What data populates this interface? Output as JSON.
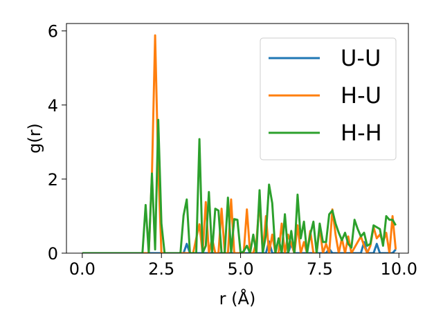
{
  "chart_data": {
    "type": "line",
    "title": "",
    "xlabel": "r (Å)",
    "ylabel": "g(r)",
    "xlim": [
      -0.5,
      10.3
    ],
    "ylim": [
      0,
      6.2
    ],
    "xticks": [
      0.0,
      2.5,
      5.0,
      7.5,
      10.0
    ],
    "xtick_labels": [
      "0.0",
      "2.5",
      "5.0",
      "7.5",
      "10.0"
    ],
    "yticks": [
      0,
      2,
      4,
      6
    ],
    "ytick_labels": [
      "0",
      "2",
      "4",
      "6"
    ],
    "grid": false,
    "legend_position": "top-right",
    "series": [
      {
        "name": "U-U",
        "color": "#1f77b4",
        "x": [
          0,
          3.2,
          3.3,
          3.4,
          5.8,
          5.9,
          6.0,
          6.5,
          6.6,
          6.7,
          7.7,
          7.8,
          7.9,
          8.8,
          8.9,
          9.0,
          9.2,
          9.3,
          9.4,
          9.8,
          9.9
        ],
        "y": [
          0,
          0,
          0.25,
          0,
          0,
          0.32,
          0,
          0,
          0.25,
          0,
          0,
          0.12,
          0,
          0,
          0.3,
          0,
          0,
          0.25,
          0,
          0,
          0.1
        ]
      },
      {
        "name": "H-U",
        "color": "#ff7f0e",
        "x": [
          0,
          2.1,
          2.2,
          2.3,
          2.4,
          2.5,
          3.5,
          3.6,
          3.7,
          3.8,
          3.9,
          4.0,
          4.1,
          4.2,
          4.3,
          4.4,
          4.5,
          4.6,
          4.7,
          4.8,
          4.9,
          5.0,
          5.1,
          5.2,
          5.3,
          5.4,
          5.5,
          5.6,
          5.7,
          5.8,
          5.9,
          6.0,
          6.1,
          6.2,
          6.3,
          6.4,
          6.5,
          6.6,
          6.7,
          6.8,
          6.9,
          7.0,
          7.1,
          7.2,
          7.3,
          7.4,
          7.5,
          7.6,
          7.7,
          7.8,
          7.9,
          8.0,
          8.1,
          8.2,
          8.3,
          8.4,
          8.5,
          8.6,
          8.7,
          8.8,
          8.9,
          9.0,
          9.1,
          9.2,
          9.3,
          9.4,
          9.5,
          9.6,
          9.7,
          9.8,
          9.9
        ],
        "y": [
          0,
          0,
          2.1,
          5.88,
          2.3,
          0,
          0,
          0.4,
          0.78,
          0,
          1.38,
          0,
          0.4,
          0,
          0,
          1.2,
          0,
          0,
          1.45,
          0,
          0,
          0,
          0,
          1.18,
          0,
          0,
          0.3,
          1.42,
          0,
          1.0,
          0,
          0.5,
          0,
          0,
          0.8,
          0,
          0.5,
          0.25,
          0,
          0.75,
          0,
          0.3,
          0,
          0.6,
          0,
          0,
          0.7,
          0,
          0.25,
          0,
          1.18,
          0.5,
          0,
          0.4,
          0,
          0.45,
          0,
          0.15,
          0.3,
          0.45,
          0.2,
          0,
          0.2,
          0.7,
          0.4,
          0.5,
          0.3,
          0.55,
          0,
          1.0,
          0.1
        ]
      },
      {
        "name": "H-H",
        "color": "#2ca02c",
        "x": [
          0,
          1.9,
          2.0,
          2.1,
          2.2,
          2.3,
          2.4,
          2.5,
          2.6,
          3.1,
          3.2,
          3.3,
          3.4,
          3.5,
          3.6,
          3.7,
          3.8,
          3.9,
          4.0,
          4.1,
          4.2,
          4.3,
          4.4,
          4.5,
          4.6,
          4.7,
          4.8,
          4.9,
          5.0,
          5.1,
          5.2,
          5.3,
          5.4,
          5.5,
          5.6,
          5.7,
          5.8,
          5.9,
          6.0,
          6.1,
          6.2,
          6.3,
          6.4,
          6.5,
          6.6,
          6.7,
          6.8,
          6.9,
          7.0,
          7.1,
          7.2,
          7.3,
          7.4,
          7.5,
          7.6,
          7.7,
          7.8,
          7.9,
          8.0,
          8.1,
          8.2,
          8.3,
          8.4,
          8.5,
          8.6,
          8.7,
          8.8,
          8.9,
          9.0,
          9.1,
          9.2,
          9.3,
          9.4,
          9.5,
          9.6,
          9.7,
          9.8,
          9.9
        ],
        "y": [
          0,
          0,
          1.3,
          0,
          2.15,
          0.1,
          3.6,
          0.8,
          0,
          0,
          1.02,
          1.45,
          0,
          0,
          0,
          3.08,
          0,
          0.2,
          1.65,
          0,
          1.2,
          1.15,
          0,
          0,
          1.5,
          0,
          0.92,
          0.9,
          0,
          0.05,
          0.2,
          0,
          0.5,
          0,
          1.7,
          0,
          0.5,
          1.85,
          1.35,
          0,
          0.4,
          0,
          1.05,
          0,
          0.6,
          0,
          1.58,
          0.4,
          0.85,
          0,
          0.5,
          0.85,
          0,
          0.8,
          0.3,
          0.3,
          1.05,
          1.15,
          0.8,
          0.55,
          0.35,
          0.55,
          0.25,
          0.15,
          0.9,
          0.65,
          0.45,
          0.55,
          0.2,
          0.25,
          0.75,
          0.7,
          0.65,
          0.2,
          1.0,
          0.9,
          0.9,
          0.75
        ]
      }
    ]
  }
}
